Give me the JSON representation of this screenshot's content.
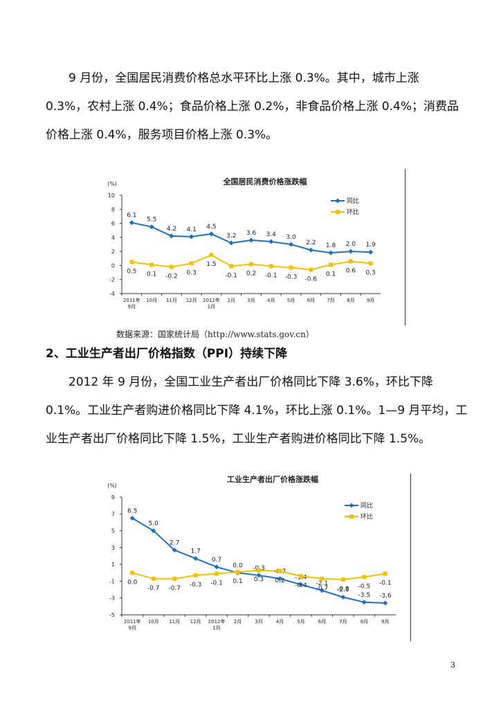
{
  "cpi_paragraph": {
    "lines": [
      "9 月份，全国居民消费价格总水平环比上涨 0.3%。其中，城市上涨",
      "0.3%，农村上涨 0.4%；食品价格上涨 0.2%，非食品价格上涨 0.4%；消费品",
      "价格上涨 0.4%，服务项目价格上涨 0.3%。"
    ]
  },
  "cpi_source": "数据来源：国家统计局（http://www.stats.gov.cn）",
  "ppi_heading": "2、工业生产者出厂价格指数（PPI）持续下降",
  "ppi_paragraph": {
    "lines": [
      "2012 年 9 月份，全国工业生产者出厂价格同比下降 3.6%，环比下降",
      "0.1%。工业生产者购进价格同比下降 4.1%，环比上涨 0.1%。1—9 月平均，工",
      "业生产者出厂价格同比下降 1.5%，工业生产者购进价格同比下降 1.5%。"
    ]
  },
  "page_number": "3",
  "colors": {
    "yoy": "#1f6fc0",
    "mom": "#f2c200",
    "axis": "#333333"
  },
  "chart_data": [
    {
      "type": "line",
      "title": "全国居民消费价格涨跌幅",
      "ylabel": "(%)",
      "ylim": [
        -4,
        10
      ],
      "yticks": [
        10,
        8,
        6,
        4,
        2,
        0,
        -2,
        -4
      ],
      "legend_position": "top-right",
      "categories": [
        "2011年9月",
        "10月",
        "11月",
        "12月",
        "2012年1月",
        "2月",
        "3月",
        "4月",
        "5月",
        "6月",
        "7月",
        "8月",
        "9月"
      ],
      "series": [
        {
          "name": "同比",
          "values": [
            6.1,
            5.5,
            4.2,
            4.1,
            4.5,
            3.2,
            3.6,
            3.4,
            3.0,
            2.2,
            1.8,
            2.0,
            1.9
          ],
          "labels": [
            "6.1",
            "5.5",
            "4.2",
            "4.1",
            "4.5",
            "3.2",
            "3.6",
            "3.4",
            "3.0",
            "2.2",
            "1.8",
            "2.0",
            "1.9"
          ]
        },
        {
          "name": "环比",
          "values": [
            0.5,
            0.1,
            -0.2,
            0.3,
            1.5,
            -0.1,
            0.2,
            -0.1,
            -0.3,
            -0.6,
            0.1,
            0.6,
            0.3
          ],
          "labels": [
            "0.5",
            "0.1",
            "-0.2",
            "0.3",
            "1.5",
            "-0.1",
            "0.2",
            "-0.1",
            "-0.3",
            "-0.6",
            "0.1",
            "0.6",
            "0.3"
          ]
        }
      ]
    },
    {
      "type": "line",
      "title": "工业生产者出厂价格涨跌幅",
      "ylabel": "(%)",
      "ylim": [
        -5,
        9
      ],
      "yticks": [
        9,
        7,
        5,
        3,
        1,
        -1,
        -3,
        -5
      ],
      "legend_position": "top-right",
      "categories": [
        "2011年9月",
        "10月",
        "11月",
        "12月",
        "2012年1月",
        "2月",
        "3月",
        "4月",
        "5月",
        "6月",
        "7月",
        "8月",
        "9月"
      ],
      "series": [
        {
          "name": "同比",
          "values": [
            6.5,
            5.0,
            2.7,
            1.7,
            0.7,
            0.0,
            -0.3,
            -0.7,
            -1.4,
            -2.1,
            -2.9,
            -3.5,
            -3.6
          ],
          "labels": [
            "6.5",
            "5.0",
            "2.7",
            "1.7",
            "0.7",
            "0.0",
            "-0.3",
            "-0.7",
            "-1.4",
            "-2.1",
            "-2.9",
            "-3.5",
            "-3.6"
          ]
        },
        {
          "name": "环比",
          "values": [
            0.0,
            -0.7,
            -0.7,
            -0.3,
            -0.1,
            0.1,
            0.3,
            0.2,
            -0.4,
            -0.7,
            -0.8,
            -0.5,
            -0.1
          ],
          "labels": [
            "0.0",
            "-0.7",
            "-0.7",
            "-0.3",
            "-0.1",
            "0.1",
            "0.3",
            "0.2",
            "-0.4",
            "-0.7",
            "-0.8",
            "-0.5",
            "-0.1"
          ]
        }
      ]
    }
  ]
}
